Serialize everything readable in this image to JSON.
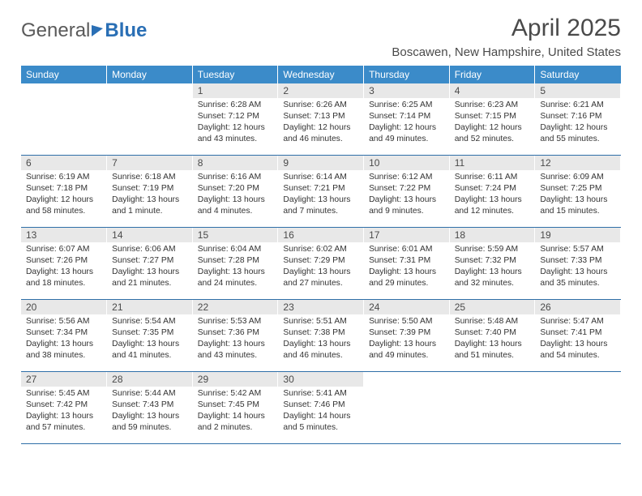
{
  "logo": {
    "text1": "General",
    "text2": "Blue"
  },
  "title": "April 2025",
  "location": "Boscawen, New Hampshire, United States",
  "header_bg": "#3b8bc9",
  "header_text_color": "#ffffff",
  "rule_color": "#2f6fa8",
  "daynum_bg": "#e8e8e8",
  "weekdays": [
    "Sunday",
    "Monday",
    "Tuesday",
    "Wednesday",
    "Thursday",
    "Friday",
    "Saturday"
  ],
  "first_weekday_index": 2,
  "days": [
    {
      "n": 1,
      "sunrise": "6:28 AM",
      "sunset": "7:12 PM",
      "daylight": "12 hours and 43 minutes."
    },
    {
      "n": 2,
      "sunrise": "6:26 AM",
      "sunset": "7:13 PM",
      "daylight": "12 hours and 46 minutes."
    },
    {
      "n": 3,
      "sunrise": "6:25 AM",
      "sunset": "7:14 PM",
      "daylight": "12 hours and 49 minutes."
    },
    {
      "n": 4,
      "sunrise": "6:23 AM",
      "sunset": "7:15 PM",
      "daylight": "12 hours and 52 minutes."
    },
    {
      "n": 5,
      "sunrise": "6:21 AM",
      "sunset": "7:16 PM",
      "daylight": "12 hours and 55 minutes."
    },
    {
      "n": 6,
      "sunrise": "6:19 AM",
      "sunset": "7:18 PM",
      "daylight": "12 hours and 58 minutes."
    },
    {
      "n": 7,
      "sunrise": "6:18 AM",
      "sunset": "7:19 PM",
      "daylight": "13 hours and 1 minute."
    },
    {
      "n": 8,
      "sunrise": "6:16 AM",
      "sunset": "7:20 PM",
      "daylight": "13 hours and 4 minutes."
    },
    {
      "n": 9,
      "sunrise": "6:14 AM",
      "sunset": "7:21 PM",
      "daylight": "13 hours and 7 minutes."
    },
    {
      "n": 10,
      "sunrise": "6:12 AM",
      "sunset": "7:22 PM",
      "daylight": "13 hours and 9 minutes."
    },
    {
      "n": 11,
      "sunrise": "6:11 AM",
      "sunset": "7:24 PM",
      "daylight": "13 hours and 12 minutes."
    },
    {
      "n": 12,
      "sunrise": "6:09 AM",
      "sunset": "7:25 PM",
      "daylight": "13 hours and 15 minutes."
    },
    {
      "n": 13,
      "sunrise": "6:07 AM",
      "sunset": "7:26 PM",
      "daylight": "13 hours and 18 minutes."
    },
    {
      "n": 14,
      "sunrise": "6:06 AM",
      "sunset": "7:27 PM",
      "daylight": "13 hours and 21 minutes."
    },
    {
      "n": 15,
      "sunrise": "6:04 AM",
      "sunset": "7:28 PM",
      "daylight": "13 hours and 24 minutes."
    },
    {
      "n": 16,
      "sunrise": "6:02 AM",
      "sunset": "7:29 PM",
      "daylight": "13 hours and 27 minutes."
    },
    {
      "n": 17,
      "sunrise": "6:01 AM",
      "sunset": "7:31 PM",
      "daylight": "13 hours and 29 minutes."
    },
    {
      "n": 18,
      "sunrise": "5:59 AM",
      "sunset": "7:32 PM",
      "daylight": "13 hours and 32 minutes."
    },
    {
      "n": 19,
      "sunrise": "5:57 AM",
      "sunset": "7:33 PM",
      "daylight": "13 hours and 35 minutes."
    },
    {
      "n": 20,
      "sunrise": "5:56 AM",
      "sunset": "7:34 PM",
      "daylight": "13 hours and 38 minutes."
    },
    {
      "n": 21,
      "sunrise": "5:54 AM",
      "sunset": "7:35 PM",
      "daylight": "13 hours and 41 minutes."
    },
    {
      "n": 22,
      "sunrise": "5:53 AM",
      "sunset": "7:36 PM",
      "daylight": "13 hours and 43 minutes."
    },
    {
      "n": 23,
      "sunrise": "5:51 AM",
      "sunset": "7:38 PM",
      "daylight": "13 hours and 46 minutes."
    },
    {
      "n": 24,
      "sunrise": "5:50 AM",
      "sunset": "7:39 PM",
      "daylight": "13 hours and 49 minutes."
    },
    {
      "n": 25,
      "sunrise": "5:48 AM",
      "sunset": "7:40 PM",
      "daylight": "13 hours and 51 minutes."
    },
    {
      "n": 26,
      "sunrise": "5:47 AM",
      "sunset": "7:41 PM",
      "daylight": "13 hours and 54 minutes."
    },
    {
      "n": 27,
      "sunrise": "5:45 AM",
      "sunset": "7:42 PM",
      "daylight": "13 hours and 57 minutes."
    },
    {
      "n": 28,
      "sunrise": "5:44 AM",
      "sunset": "7:43 PM",
      "daylight": "13 hours and 59 minutes."
    },
    {
      "n": 29,
      "sunrise": "5:42 AM",
      "sunset": "7:45 PM",
      "daylight": "14 hours and 2 minutes."
    },
    {
      "n": 30,
      "sunrise": "5:41 AM",
      "sunset": "7:46 PM",
      "daylight": "14 hours and 5 minutes."
    }
  ],
  "labels": {
    "sunrise": "Sunrise:",
    "sunset": "Sunset:",
    "daylight": "Daylight:"
  }
}
